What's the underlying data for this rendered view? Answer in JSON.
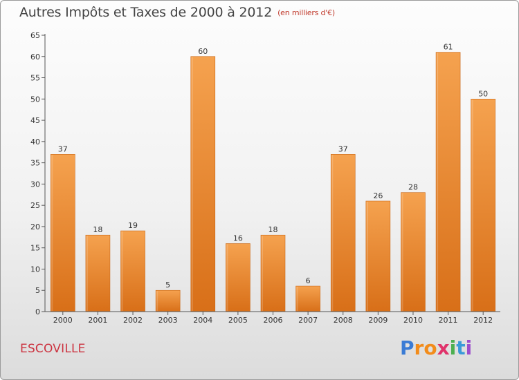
{
  "header": {
    "title": "Autres Impôts et Taxes de 2000 à 2012",
    "unit": "(en milliers d'€)"
  },
  "footer": {
    "commune": "ESCOVILLE",
    "brand_letters": [
      "P",
      "r",
      "o",
      "x",
      "i",
      "t",
      "i"
    ],
    "brand_colors": [
      "#3a7bd5",
      "#f28c1b",
      "#f28c1b",
      "#e0336b",
      "#4caf50",
      "#3a9ad9",
      "#9c4dcc"
    ]
  },
  "colors": {
    "bar_light": "#f5a24f",
    "bar_dark": "#d86f18",
    "axis": "#555555",
    "grid": "#dddddd"
  },
  "chart_data": {
    "type": "bar",
    "title": "Autres Impôts et Taxes de 2000 à 2012",
    "subtitle": "(en milliers d'€)",
    "xlabel": "",
    "ylabel": "",
    "categories": [
      "2000",
      "2001",
      "2002",
      "2003",
      "2004",
      "2005",
      "2006",
      "2007",
      "2008",
      "2009",
      "2010",
      "2011",
      "2012"
    ],
    "values": [
      37,
      18,
      19,
      5,
      60,
      16,
      18,
      6,
      37,
      26,
      28,
      61,
      50
    ],
    "ylim": [
      0,
      65
    ],
    "yticks": [
      0,
      5,
      10,
      15,
      20,
      25,
      30,
      35,
      40,
      45,
      50,
      55,
      60,
      65
    ],
    "grid": false,
    "legend": "none"
  }
}
